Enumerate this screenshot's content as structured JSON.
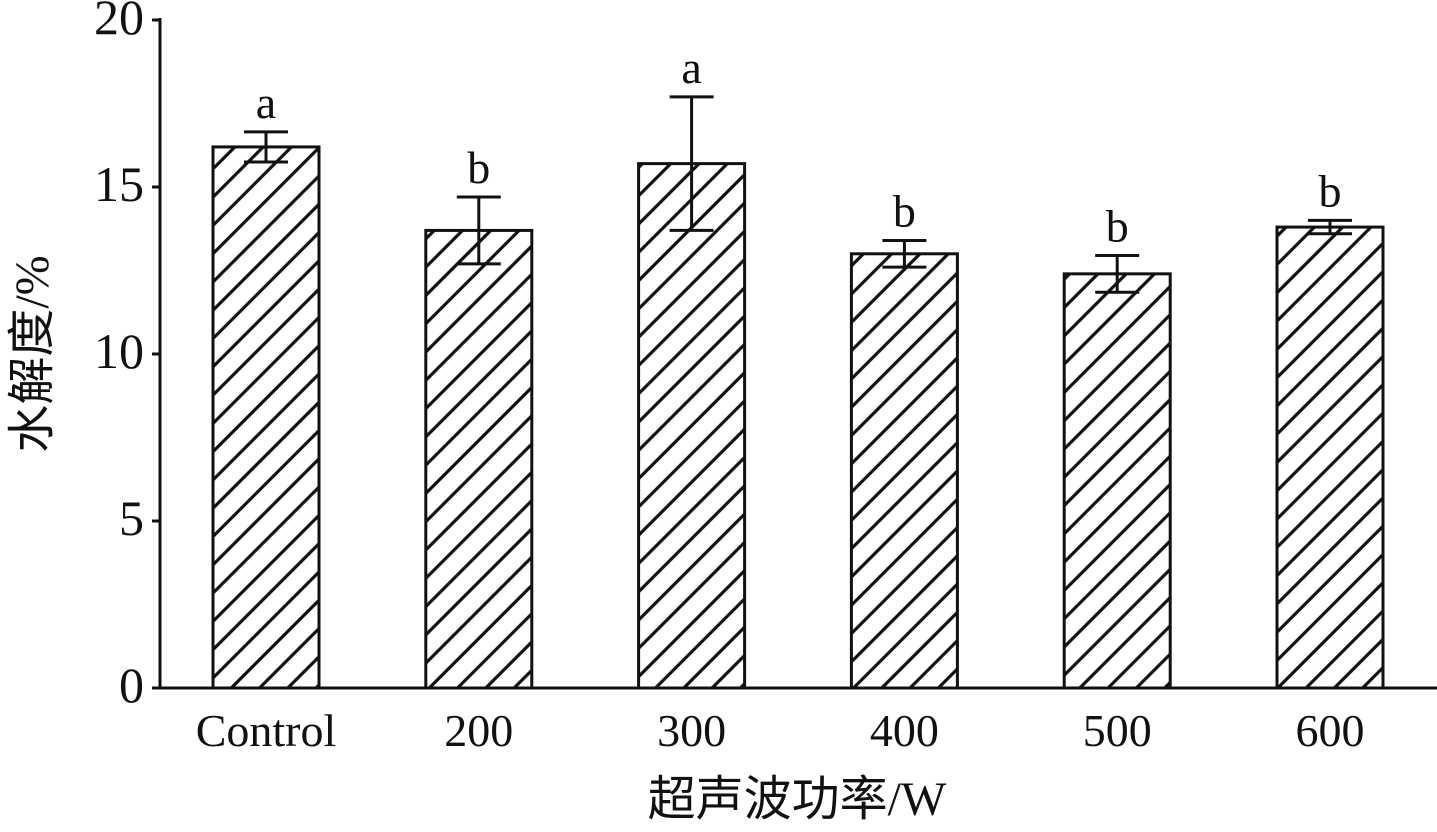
{
  "chart_data": {
    "type": "bar",
    "title": "",
    "xlabel": "超声波功率/W",
    "ylabel": "水解度/%",
    "categories": [
      "Control",
      "200",
      "300",
      "400",
      "500",
      "600"
    ],
    "values": [
      16.2,
      13.7,
      15.7,
      13.0,
      12.4,
      13.8
    ],
    "errors": [
      0.45,
      1.0,
      2.0,
      0.4,
      0.55,
      0.2
    ],
    "significance": [
      "a",
      "b",
      "a",
      "b",
      "b",
      "b"
    ],
    "ylim": [
      0,
      20
    ],
    "yticks": [
      "0",
      "5",
      "10",
      "15",
      "20"
    ],
    "fill_pattern": "diagonal-hatch",
    "grid": false,
    "legend": "none",
    "colors": {
      "bar_fill": "#ffffff",
      "bar_stroke": "#111111",
      "hatch": "#111111"
    }
  }
}
